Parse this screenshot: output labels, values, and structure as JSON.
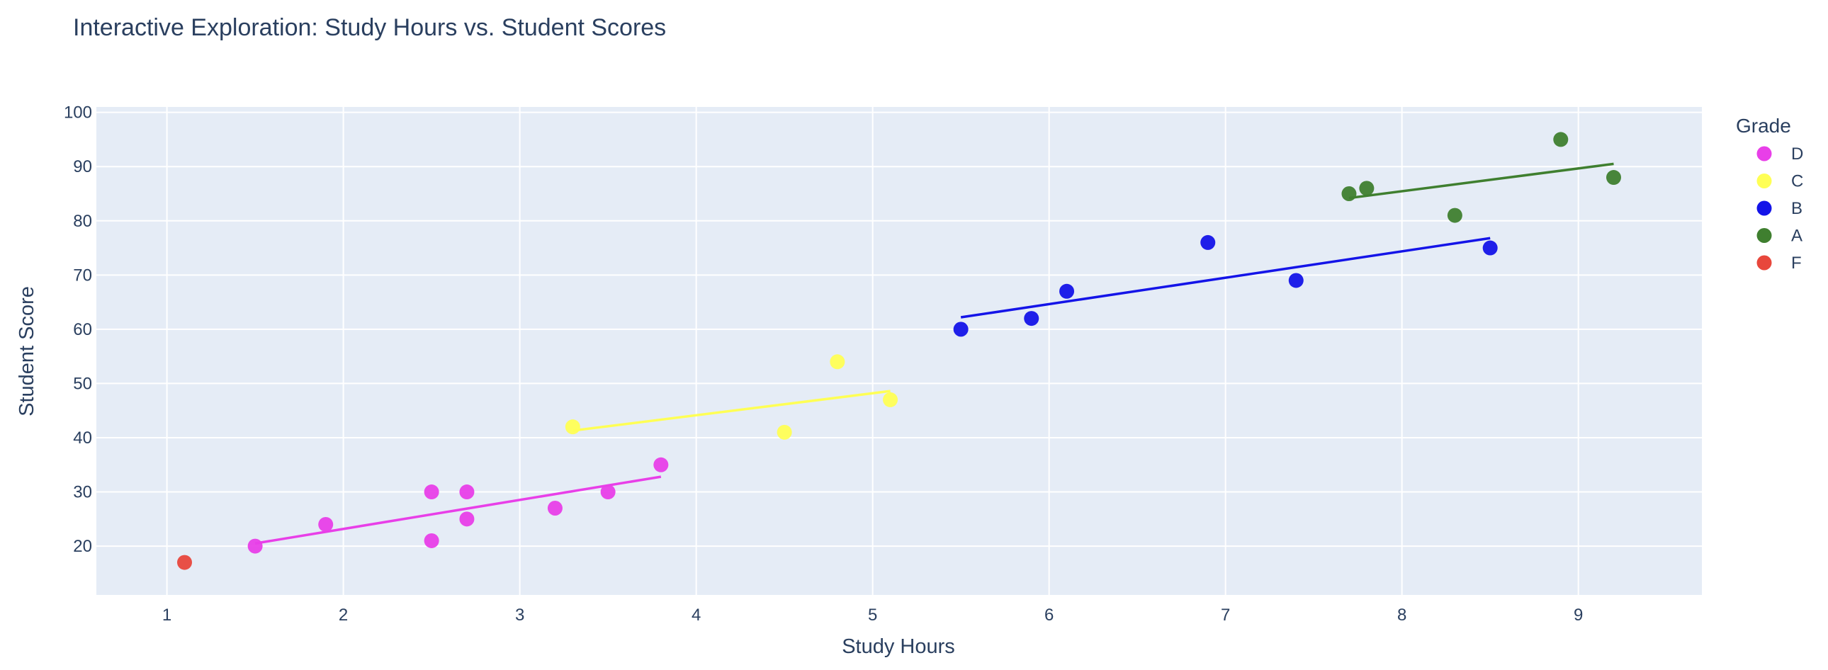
{
  "chart_data": {
    "type": "scatter",
    "title": "Interactive Exploration: Study Hours vs. Student Scores",
    "xlabel": "Study Hours",
    "ylabel": "Student Score",
    "xlim": [
      0.6,
      9.7
    ],
    "ylim": [
      11,
      101
    ],
    "x_ticks": [
      1,
      2,
      3,
      4,
      5,
      6,
      7,
      8,
      9
    ],
    "y_ticks": [
      20,
      30,
      40,
      50,
      60,
      70,
      80,
      90,
      100
    ],
    "grid": true,
    "legend": {
      "title": "Grade",
      "placement": "right"
    },
    "series": [
      {
        "name": "D",
        "color": "#e83fe8",
        "points": [
          [
            1.5,
            20
          ],
          [
            1.9,
            24
          ],
          [
            2.5,
            30
          ],
          [
            2.5,
            21
          ],
          [
            2.7,
            30
          ],
          [
            2.7,
            25
          ],
          [
            3.2,
            27
          ],
          [
            3.5,
            30
          ],
          [
            3.8,
            35
          ]
        ],
        "trendline": [
          [
            1.5,
            20.5
          ],
          [
            3.8,
            32.8
          ]
        ]
      },
      {
        "name": "C",
        "color": "#ffff55",
        "points": [
          [
            3.3,
            42
          ],
          [
            4.5,
            41
          ],
          [
            4.8,
            54
          ],
          [
            5.1,
            47
          ]
        ],
        "trendline": [
          [
            3.3,
            41.3
          ],
          [
            5.1,
            48.6
          ]
        ]
      },
      {
        "name": "B",
        "color": "#1414e8",
        "points": [
          [
            5.5,
            60
          ],
          [
            5.9,
            62
          ],
          [
            6.1,
            67
          ],
          [
            6.9,
            76
          ],
          [
            7.4,
            69
          ],
          [
            8.5,
            75
          ]
        ],
        "trendline": [
          [
            5.5,
            62.2
          ],
          [
            8.5,
            76.8
          ]
        ]
      },
      {
        "name": "A",
        "color": "#3f7f2f",
        "points": [
          [
            7.7,
            85
          ],
          [
            7.8,
            86
          ],
          [
            8.3,
            81
          ],
          [
            8.9,
            95
          ],
          [
            9.2,
            88
          ]
        ],
        "trendline": [
          [
            7.7,
            84.2
          ],
          [
            9.2,
            90.5
          ]
        ]
      },
      {
        "name": "F",
        "color": "#e8473c",
        "points": [
          [
            1.1,
            17
          ]
        ],
        "trendline": null
      }
    ]
  }
}
